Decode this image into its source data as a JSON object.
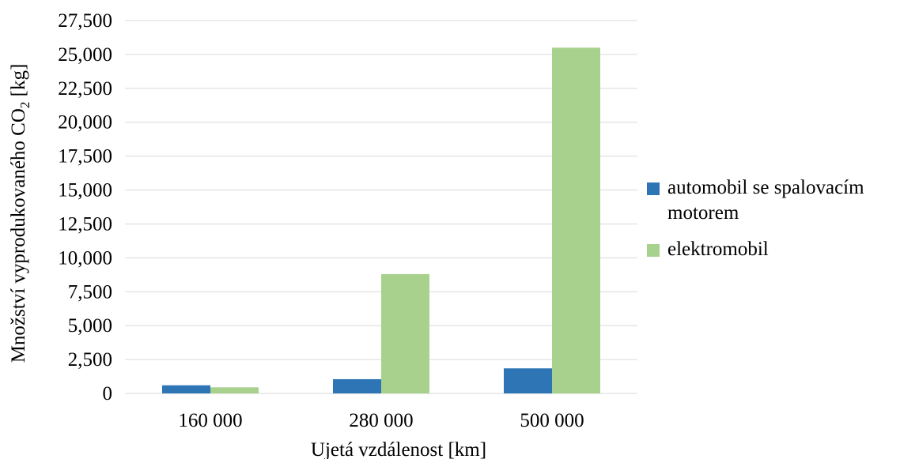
{
  "chart_data": {
    "type": "bar",
    "categories": [
      "160 000",
      "280 000",
      "500 000"
    ],
    "series": [
      {
        "name": "automobil se spalovacím motorem",
        "values": [
          600,
          1050,
          1850
        ],
        "color": "#2e75b6"
      },
      {
        "name": "elektromobil",
        "values": [
          450,
          8800,
          25500
        ],
        "color": "#a9d18e"
      }
    ],
    "xlabel": "Ujetá vzdálenost [km]",
    "ylabel": {
      "main": "Množství vyprodukovaného CO",
      "sub": "2",
      "unit": " [kg]"
    },
    "ylim": [
      0,
      27500
    ],
    "yticks": [
      "0",
      "2,500",
      "5,000",
      "7,500",
      "10,000",
      "12,500",
      "15,000",
      "17,500",
      "20,000",
      "22,500",
      "25,000",
      "27,500"
    ],
    "grid": true,
    "legend_position": "right"
  }
}
